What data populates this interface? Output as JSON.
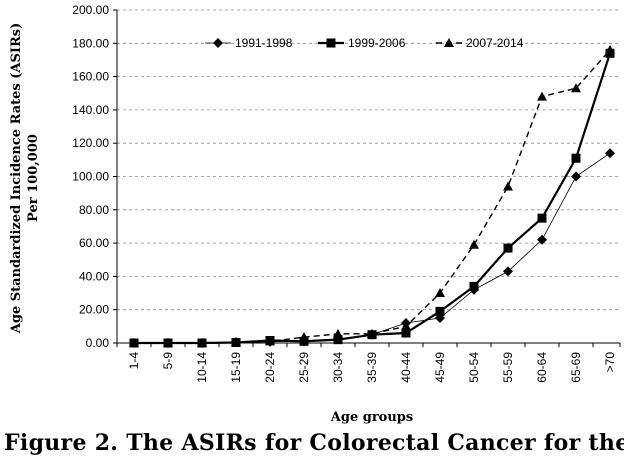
{
  "caption": "Figure 2. The ASIRs for Colorectal Cancer for the",
  "chart_data": {
    "type": "line",
    "title": "",
    "xlabel": "Age groups",
    "ylabel_line1": "Age Standardized Incidence Rates (ASIRs)",
    "ylabel_line2": "Per 100,000",
    "ylim": [
      0,
      200
    ],
    "yticks": [
      "0.00",
      "20.00",
      "40.00",
      "60.00",
      "80.00",
      "100.00",
      "120.00",
      "140.00",
      "160.00",
      "180.00",
      "200.00"
    ],
    "grid": "horizontal dashed",
    "legend_position": "top",
    "categories": [
      "1-4",
      "5-9",
      "10-14",
      "15-19",
      "20-24",
      "25-29",
      "30-34",
      "35-39",
      "40-44",
      "45-49",
      "50-54",
      "55-59",
      "60-64",
      "65-69",
      ">70"
    ],
    "series": [
      {
        "name": "1991-1998",
        "marker": "diamond",
        "line": "thin",
        "values": [
          0,
          0,
          0,
          0.5,
          0.7,
          1.5,
          2.5,
          5.0,
          12.0,
          15.0,
          32.0,
          43.0,
          62.0,
          100.0,
          114.0
        ]
      },
      {
        "name": "1999-2006",
        "marker": "square",
        "line": "solid",
        "values": [
          0,
          0,
          0,
          0.3,
          1.5,
          1.0,
          2.0,
          5.0,
          6.0,
          19.0,
          34.0,
          57.0,
          75.0,
          111.0,
          174.0
        ]
      },
      {
        "name": "2007-2014",
        "marker": "triangle",
        "line": "dashed",
        "values": [
          0,
          0,
          0,
          0.4,
          1.0,
          3.5,
          5.5,
          5.5,
          10.0,
          30.0,
          59.0,
          94.0,
          148.0,
          153.0,
          176.0
        ]
      }
    ]
  }
}
